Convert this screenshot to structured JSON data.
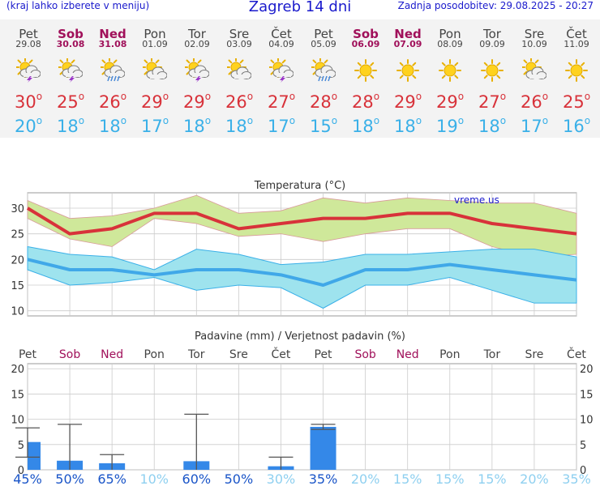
{
  "header": {
    "menu_hint": "(kraj lahko izberete v meniju)",
    "title": "Zagreb 14 dni",
    "updated": "Zadnja posodobitev: 29.08.2025 - 20:27"
  },
  "days": [
    {
      "name": "Pet",
      "date": "29.08",
      "weekend": false,
      "icon": "sun-storm-icon",
      "tmax": "30",
      "tmin": "20"
    },
    {
      "name": "Sob",
      "date": "30.08",
      "weekend": true,
      "icon": "sun-storm-icon",
      "tmax": "25",
      "tmin": "18"
    },
    {
      "name": "Ned",
      "date": "31.08",
      "weekend": true,
      "icon": "sun-rain-icon",
      "tmax": "26",
      "tmin": "18"
    },
    {
      "name": "Pon",
      "date": "01.09",
      "weekend": false,
      "icon": "sun-cloud-icon",
      "tmax": "29",
      "tmin": "17"
    },
    {
      "name": "Tor",
      "date": "02.09",
      "weekend": false,
      "icon": "sun-storm-icon",
      "tmax": "29",
      "tmin": "18"
    },
    {
      "name": "Sre",
      "date": "03.09",
      "weekend": false,
      "icon": "sun-cloud-icon",
      "tmax": "26",
      "tmin": "18"
    },
    {
      "name": "Čet",
      "date": "04.09",
      "weekend": false,
      "icon": "sun-storm-icon",
      "tmax": "27",
      "tmin": "17"
    },
    {
      "name": "Pet",
      "date": "05.09",
      "weekend": false,
      "icon": "sun-rain-icon",
      "tmax": "28",
      "tmin": "15"
    },
    {
      "name": "Sob",
      "date": "06.09",
      "weekend": true,
      "icon": "sun-icon",
      "tmax": "28",
      "tmin": "18"
    },
    {
      "name": "Ned",
      "date": "07.09",
      "weekend": true,
      "icon": "sun-icon",
      "tmax": "29",
      "tmin": "18"
    },
    {
      "name": "Pon",
      "date": "08.09",
      "weekend": false,
      "icon": "sun-icon",
      "tmax": "29",
      "tmin": "19"
    },
    {
      "name": "Tor",
      "date": "09.09",
      "weekend": false,
      "icon": "sun-icon",
      "tmax": "27",
      "tmin": "18"
    },
    {
      "name": "Sre",
      "date": "10.09",
      "weekend": false,
      "icon": "sun-cloud-icon",
      "tmax": "26",
      "tmin": "17"
    },
    {
      "name": "Čet",
      "date": "11.09",
      "weekend": false,
      "icon": "sun-icon",
      "tmax": "25",
      "tmin": "16"
    }
  ],
  "degree_sign": "o",
  "colors": {
    "max": "#d8323a",
    "min": "#3ab0e8",
    "max_band": "#cfe89a",
    "min_band": "#9ee3ee",
    "bar": "#3488e8",
    "prob_high": "#1a55c8",
    "prob_low": "#8fd0f0"
  },
  "chart_data": [
    {
      "type": "line",
      "title": "Temperatura (°C)",
      "watermark": "vreme.us",
      "ylim": [
        9,
        33
      ],
      "yticks": [
        10,
        15,
        20,
        25,
        30
      ],
      "x": [
        1,
        2,
        3,
        4,
        5,
        6,
        7,
        8,
        9,
        10,
        11,
        12,
        13,
        14
      ],
      "series": [
        {
          "values": [
            30,
            25,
            26,
            29,
            29,
            26,
            27,
            28,
            28,
            29,
            29,
            27,
            26,
            25
          ]
        },
        {
          "values": [
            20,
            18,
            18,
            17,
            18,
            18,
            17,
            15,
            18,
            18,
            19,
            18,
            17,
            16
          ]
        }
      ],
      "max_band": {
        "upper": [
          31.5,
          28,
          28.5,
          30,
          32.5,
          29,
          29.5,
          32,
          31,
          32,
          31.5,
          31,
          31,
          29
        ],
        "lower": [
          28,
          24,
          22.5,
          28,
          27,
          24.5,
          25,
          23.5,
          25,
          26,
          26,
          22.5,
          20.5,
          21
        ]
      },
      "min_band": {
        "upper": [
          22.5,
          21,
          20.5,
          18,
          22,
          21,
          19,
          19.5,
          21,
          21,
          21.5,
          22,
          22,
          20.5
        ],
        "lower": [
          18,
          15,
          15.5,
          16.5,
          14,
          15,
          14.5,
          10.5,
          15,
          15,
          16.5,
          14,
          11.5,
          11.5
        ]
      }
    },
    {
      "type": "bar",
      "title": "Padavine (mm) / Verjetnost padavin (%)",
      "categories": [
        "Pet",
        "Sob",
        "Ned",
        "Pon",
        "Tor",
        "Sre",
        "Čet",
        "Pet",
        "Sob",
        "Ned",
        "Pon",
        "Tor",
        "Sre",
        "Čet"
      ],
      "values": [
        5.5,
        1.8,
        1.3,
        0,
        1.7,
        0,
        0.7,
        8.5,
        0,
        0,
        0,
        0,
        0,
        0
      ],
      "range_low": [
        2.5,
        0,
        0,
        0,
        0,
        0,
        0,
        8,
        0,
        0,
        0,
        0,
        0,
        0
      ],
      "range_high": [
        8.3,
        9,
        3,
        0,
        11,
        0,
        2.5,
        9,
        0,
        0,
        0,
        0,
        0,
        0
      ],
      "probability": [
        "45%",
        "50%",
        "65%",
        "10%",
        "60%",
        "50%",
        "30%",
        "35%",
        "20%",
        "15%",
        "15%",
        "15%",
        "20%",
        "35%"
      ],
      "prob_high": [
        true,
        true,
        true,
        false,
        true,
        true,
        false,
        true,
        false,
        false,
        false,
        false,
        false,
        false
      ],
      "ylim": [
        0,
        21
      ],
      "yticks": [
        0,
        5,
        10,
        15,
        20
      ]
    }
  ]
}
